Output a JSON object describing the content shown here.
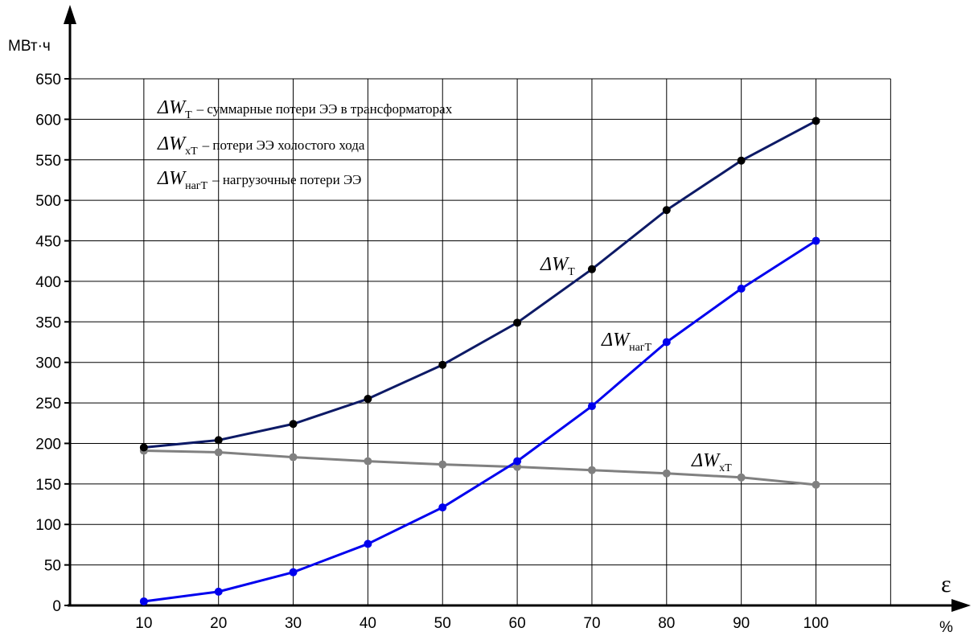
{
  "chart_data": {
    "type": "line",
    "ylabel": "МВт·ч",
    "xlabel": "ε",
    "x_unit": "%",
    "x": [
      10,
      20,
      30,
      40,
      50,
      60,
      70,
      80,
      90,
      100
    ],
    "xlim": [
      0,
      110
    ],
    "ylim": [
      0,
      650
    ],
    "y_ticks": [
      0,
      50,
      100,
      150,
      200,
      250,
      300,
      350,
      400,
      450,
      500,
      550,
      600,
      650
    ],
    "grid": true,
    "series": [
      {
        "name": "ΔWТ",
        "symbol": "ΔW",
        "sub": "Т",
        "color": "#0d1a66",
        "values": [
          195,
          204,
          224,
          255,
          297,
          349,
          415,
          488,
          549,
          598
        ]
      },
      {
        "name": "ΔWнагТ",
        "symbol": "ΔW",
        "sub": "нагТ",
        "color": "#0000ee",
        "values": [
          5,
          17,
          41,
          76,
          121,
          178,
          246,
          325,
          391,
          450
        ]
      },
      {
        "name": "ΔWхТ",
        "symbol": "ΔW",
        "sub": "хТ",
        "color": "#808080",
        "values": [
          191,
          189,
          183,
          178,
          174,
          171,
          167,
          163,
          158,
          149
        ]
      }
    ],
    "legend": {
      "placement": "top-left",
      "items": [
        {
          "symbol": "ΔW",
          "sub": "Т",
          "text": "– суммарные потери ЭЭ в трансформаторах"
        },
        {
          "symbol": "ΔW",
          "sub": "хТ",
          "text": "– потери ЭЭ холостого хода"
        },
        {
          "symbol": "ΔW",
          "sub": "нагТ",
          "text": "– нагрузочные потери ЭЭ"
        }
      ]
    }
  }
}
